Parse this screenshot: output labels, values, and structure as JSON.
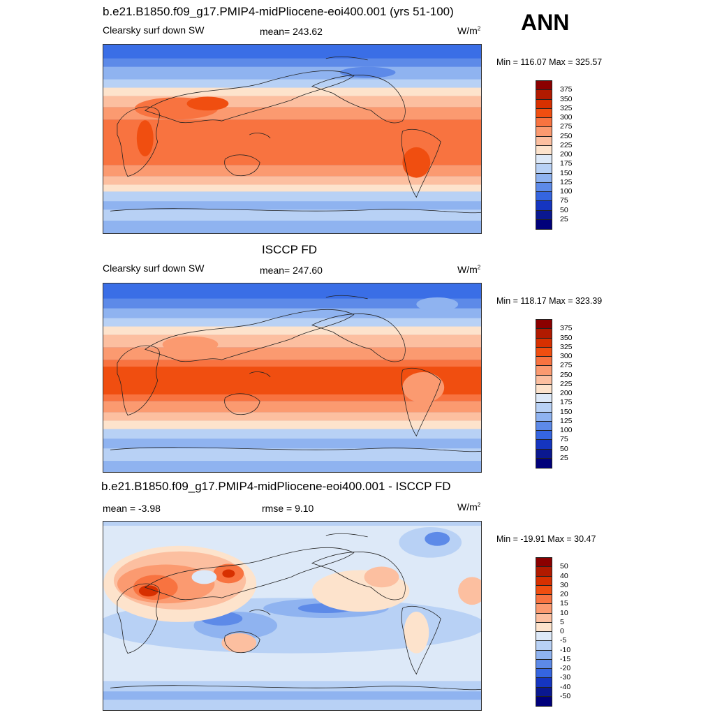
{
  "season": "ANN",
  "panels": [
    {
      "title": "b.e21.B1850.f09_g17.PMIP4-midPliocene-eoi400.001 (yrs 51-100)",
      "left_label": "Clearsky surf down SW",
      "center_label": "mean= 243.62",
      "units": "W/m",
      "units_exp": "2",
      "minmax": "Min = 116.07 Max = 325.57"
    },
    {
      "title": "ISCCP FD",
      "left_label": "Clearsky surf down SW",
      "center_label": "mean= 247.60",
      "units": "W/m",
      "units_exp": "2",
      "minmax": "Min = 118.17 Max = 323.39"
    },
    {
      "title": "b.e21.B1850.f09_g17.PMIP4-midPliocene-eoi400.001 - ISCCP FD",
      "left_label": "mean =  -3.98",
      "center_label": "rmse =   9.10",
      "units": "W/m",
      "units_exp": "2",
      "minmax": "Min = -19.91 Max =  30.47"
    }
  ],
  "colorbars": {
    "absolute": {
      "labels": [
        "375",
        "350",
        "325",
        "300",
        "275",
        "250",
        "225",
        "200",
        "175",
        "150",
        "125",
        "100",
        "75",
        "50",
        "25"
      ],
      "colors": [
        "#8b0000",
        "#b11a00",
        "#d73000",
        "#f04e10",
        "#f87340",
        "#fb9a70",
        "#fcbfa0",
        "#fde3cc",
        "#dde9f8",
        "#b8d1f5",
        "#8fb3f0",
        "#5d8ae8",
        "#3565e0",
        "#1535c0",
        "#0a1890",
        "#00007a"
      ]
    },
    "difference": {
      "labels": [
        "50",
        "40",
        "30",
        "20",
        "15",
        "10",
        "5",
        "0",
        "-5",
        "-10",
        "-15",
        "-20",
        "-30",
        "-40",
        "-50"
      ],
      "colors": [
        "#8b0000",
        "#b11a00",
        "#d73000",
        "#f04e10",
        "#f87340",
        "#fb9a70",
        "#fcbfa0",
        "#fde3cc",
        "#dde9f8",
        "#b8d1f5",
        "#8fb3f0",
        "#5d8ae8",
        "#3565e0",
        "#1535c0",
        "#0a1890",
        "#00007a"
      ]
    }
  },
  "map_colors": {
    "deep_blue": "#3a6ee6",
    "blue": "#5d8ae8",
    "light_blue": "#8fb3f0",
    "pale_blue": "#b8d1f5",
    "very_pale_blue": "#dde9f8",
    "cream": "#fde3cc",
    "peach": "#fcbfa0",
    "salmon": "#fb9a70",
    "orange": "#f87340",
    "red_orange": "#f04e10",
    "red": "#d73000",
    "dark_red": "#b11a00"
  }
}
